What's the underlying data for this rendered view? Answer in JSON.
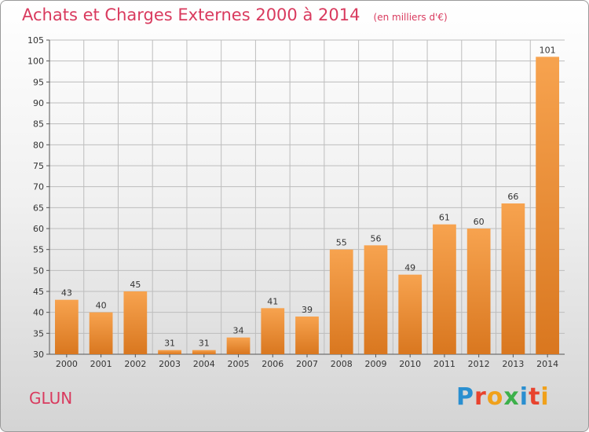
{
  "header": {
    "title": "Achats et Charges Externes 2000 à 2014",
    "subtitle": "(en milliers d'€)"
  },
  "footer": {
    "commune": "GLUN",
    "brand": "Proxiti",
    "brand_colors": [
      "#2a8fd0",
      "#e8432e",
      "#f0a11b",
      "#3db04b",
      "#2a8fd0",
      "#e8432e",
      "#f0a11b"
    ]
  },
  "colors": {
    "bar_top": "#f7a34f",
    "bar_bottom": "#d9771f",
    "title": "#d93a5e",
    "grid": "#bdbdbd"
  },
  "chart_data": {
    "type": "bar",
    "title": "Achats et Charges Externes 2000 à 2014",
    "subtitle": "(en milliers d'€)",
    "categories": [
      "2000",
      "2001",
      "2002",
      "2003",
      "2004",
      "2005",
      "2006",
      "2007",
      "2008",
      "2009",
      "2010",
      "2011",
      "2012",
      "2013",
      "2014"
    ],
    "values": [
      43,
      40,
      45,
      31,
      31,
      34,
      41,
      39,
      55,
      56,
      49,
      61,
      60,
      66,
      101
    ],
    "ylim": [
      30,
      105
    ],
    "yticks": [
      30,
      35,
      40,
      45,
      50,
      55,
      60,
      65,
      70,
      75,
      80,
      85,
      90,
      95,
      100,
      105
    ],
    "grid": true,
    "data_labels": true
  }
}
